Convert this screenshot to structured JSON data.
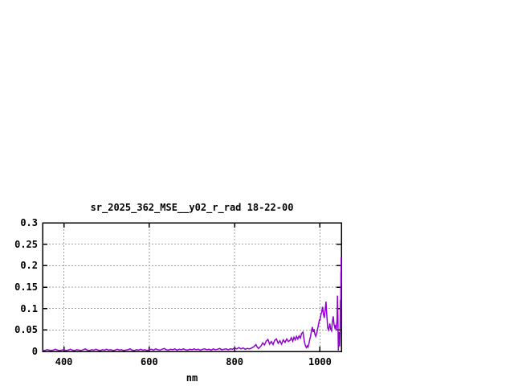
{
  "window": {
    "background_color": "#ffffff"
  },
  "chart_data": {
    "type": "line",
    "title": "sr_2025_362_MSE__y02_r_rad 18-22-00",
    "xlabel": "nm",
    "ylabel": "",
    "xlim": [
      350,
      1050
    ],
    "ylim": [
      0,
      0.3
    ],
    "x_ticks": [
      400,
      600,
      800,
      1000
    ],
    "x_tick_labels": [
      "400",
      "600",
      "800",
      "1000"
    ],
    "y_ticks": [
      0,
      0.05,
      0.1,
      0.15,
      0.2,
      0.25,
      0.3
    ],
    "y_tick_labels": [
      "0",
      "0.05",
      "0.1",
      "0.15",
      "0.2",
      "0.25",
      "0.3"
    ],
    "grid": true,
    "grid_style": "dashed",
    "legend": "none",
    "colors": {
      "line": "#9400d3",
      "grid": "#a0a0a0",
      "border": "#000000",
      "text": "#000000",
      "background": "#ffffff"
    },
    "series": [
      {
        "points": [
          [
            350,
            0.003
          ],
          [
            355,
            0.002
          ],
          [
            360,
            0.004
          ],
          [
            365,
            0.003
          ],
          [
            370,
            0.002
          ],
          [
            375,
            0.003
          ],
          [
            380,
            0.005
          ],
          [
            385,
            0.003
          ],
          [
            390,
            0.002
          ],
          [
            395,
            0.003
          ],
          [
            400,
            0.004
          ],
          [
            405,
            0.002
          ],
          [
            410,
            0.003
          ],
          [
            415,
            0.005
          ],
          [
            420,
            0.003
          ],
          [
            425,
            0.002
          ],
          [
            430,
            0.004
          ],
          [
            435,
            0.003
          ],
          [
            440,
            0.002
          ],
          [
            445,
            0.004
          ],
          [
            450,
            0.006
          ],
          [
            455,
            0.003
          ],
          [
            460,
            0.002
          ],
          [
            465,
            0.004
          ],
          [
            470,
            0.003
          ],
          [
            475,
            0.005
          ],
          [
            480,
            0.003
          ],
          [
            485,
            0.002
          ],
          [
            490,
            0.004
          ],
          [
            495,
            0.003
          ],
          [
            500,
            0.005
          ],
          [
            505,
            0.003
          ],
          [
            510,
            0.004
          ],
          [
            515,
            0.002
          ],
          [
            520,
            0.003
          ],
          [
            525,
            0.005
          ],
          [
            530,
            0.003
          ],
          [
            535,
            0.004
          ],
          [
            540,
            0.002
          ],
          [
            545,
            0.003
          ],
          [
            550,
            0.004
          ],
          [
            555,
            0.006
          ],
          [
            560,
            0.003
          ],
          [
            565,
            0.002
          ],
          [
            570,
            0.004
          ],
          [
            575,
            0.003
          ],
          [
            580,
            0.005
          ],
          [
            585,
            0.003
          ],
          [
            590,
            0.004
          ],
          [
            595,
            0.002
          ],
          [
            600,
            0.004
          ],
          [
            605,
            0.005
          ],
          [
            610,
            0.003
          ],
          [
            615,
            0.006
          ],
          [
            620,
            0.004
          ],
          [
            625,
            0.003
          ],
          [
            630,
            0.005
          ],
          [
            635,
            0.007
          ],
          [
            640,
            0.004
          ],
          [
            645,
            0.003
          ],
          [
            650,
            0.005
          ],
          [
            655,
            0.004
          ],
          [
            660,
            0.006
          ],
          [
            665,
            0.003
          ],
          [
            670,
            0.005
          ],
          [
            675,
            0.004
          ],
          [
            680,
            0.006
          ],
          [
            685,
            0.004
          ],
          [
            690,
            0.003
          ],
          [
            695,
            0.005
          ],
          [
            700,
            0.004
          ],
          [
            705,
            0.006
          ],
          [
            710,
            0.004
          ],
          [
            715,
            0.005
          ],
          [
            720,
            0.003
          ],
          [
            725,
            0.005
          ],
          [
            730,
            0.006
          ],
          [
            735,
            0.004
          ],
          [
            740,
            0.005
          ],
          [
            745,
            0.003
          ],
          [
            750,
            0.006
          ],
          [
            755,
            0.004
          ],
          [
            760,
            0.005
          ],
          [
            765,
            0.007
          ],
          [
            770,
            0.004
          ],
          [
            775,
            0.005
          ],
          [
            780,
            0.006
          ],
          [
            785,
            0.004
          ],
          [
            790,
            0.006
          ],
          [
            795,
            0.005
          ],
          [
            800,
            0.008
          ],
          [
            805,
            0.006
          ],
          [
            810,
            0.009
          ],
          [
            815,
            0.006
          ],
          [
            820,
            0.008
          ],
          [
            825,
            0.005
          ],
          [
            830,
            0.007
          ],
          [
            835,
            0.006
          ],
          [
            840,
            0.008
          ],
          [
            845,
            0.011
          ],
          [
            850,
            0.016
          ],
          [
            853,
            0.01
          ],
          [
            856,
            0.007
          ],
          [
            859,
            0.01
          ],
          [
            862,
            0.013
          ],
          [
            866,
            0.02
          ],
          [
            870,
            0.015
          ],
          [
            874,
            0.024
          ],
          [
            878,
            0.028
          ],
          [
            882,
            0.017
          ],
          [
            886,
            0.023
          ],
          [
            890,
            0.016
          ],
          [
            894,
            0.026
          ],
          [
            898,
            0.029
          ],
          [
            902,
            0.019
          ],
          [
            906,
            0.025
          ],
          [
            910,
            0.017
          ],
          [
            914,
            0.027
          ],
          [
            918,
            0.021
          ],
          [
            922,
            0.029
          ],
          [
            926,
            0.023
          ],
          [
            930,
            0.026
          ],
          [
            933,
            0.032
          ],
          [
            936,
            0.024
          ],
          [
            939,
            0.033
          ],
          [
            942,
            0.027
          ],
          [
            945,
            0.035
          ],
          [
            948,
            0.029
          ],
          [
            951,
            0.036
          ],
          [
            954,
            0.031
          ],
          [
            957,
            0.042
          ],
          [
            960,
            0.045
          ],
          [
            962,
            0.032
          ],
          [
            964,
            0.02
          ],
          [
            966,
            0.013
          ],
          [
            968,
            0.009
          ],
          [
            970,
            0.013
          ],
          [
            972,
            0.01
          ],
          [
            974,
            0.018
          ],
          [
            976,
            0.028
          ],
          [
            978,
            0.035
          ],
          [
            980,
            0.048
          ],
          [
            982,
            0.057
          ],
          [
            984,
            0.045
          ],
          [
            986,
            0.052
          ],
          [
            988,
            0.04
          ],
          [
            990,
            0.035
          ],
          [
            993,
            0.045
          ],
          [
            996,
            0.06
          ],
          [
            999,
            0.075
          ],
          [
            1000,
            0.072
          ],
          [
            1002,
            0.085
          ],
          [
            1004,
            0.092
          ],
          [
            1006,
            0.104
          ],
          [
            1008,
            0.088
          ],
          [
            1010,
            0.078
          ],
          [
            1012,
            0.095
          ],
          [
            1014,
            0.116
          ],
          [
            1016,
            0.085
          ],
          [
            1018,
            0.055
          ],
          [
            1020,
            0.05
          ],
          [
            1023,
            0.065
          ],
          [
            1025,
            0.052
          ],
          [
            1027,
            0.048
          ],
          [
            1029,
            0.068
          ],
          [
            1031,
            0.082
          ],
          [
            1033,
            0.062
          ],
          [
            1035,
            0.055
          ],
          [
            1037,
            0.062
          ],
          [
            1038,
            0.05
          ],
          [
            1040,
            0.075
          ],
          [
            1041,
            0.13
          ],
          [
            1042,
            0.085
          ],
          [
            1043,
            0.002
          ],
          [
            1044.5,
            0.045
          ],
          [
            1046,
            0.012
          ],
          [
            1047,
            0.04
          ],
          [
            1048,
            0.12
          ],
          [
            1048.5,
            0.055
          ],
          [
            1049,
            0.185
          ],
          [
            1049.3,
            0.15
          ],
          [
            1049.6,
            0.22
          ],
          [
            1050,
            0.158
          ]
        ]
      }
    ]
  }
}
